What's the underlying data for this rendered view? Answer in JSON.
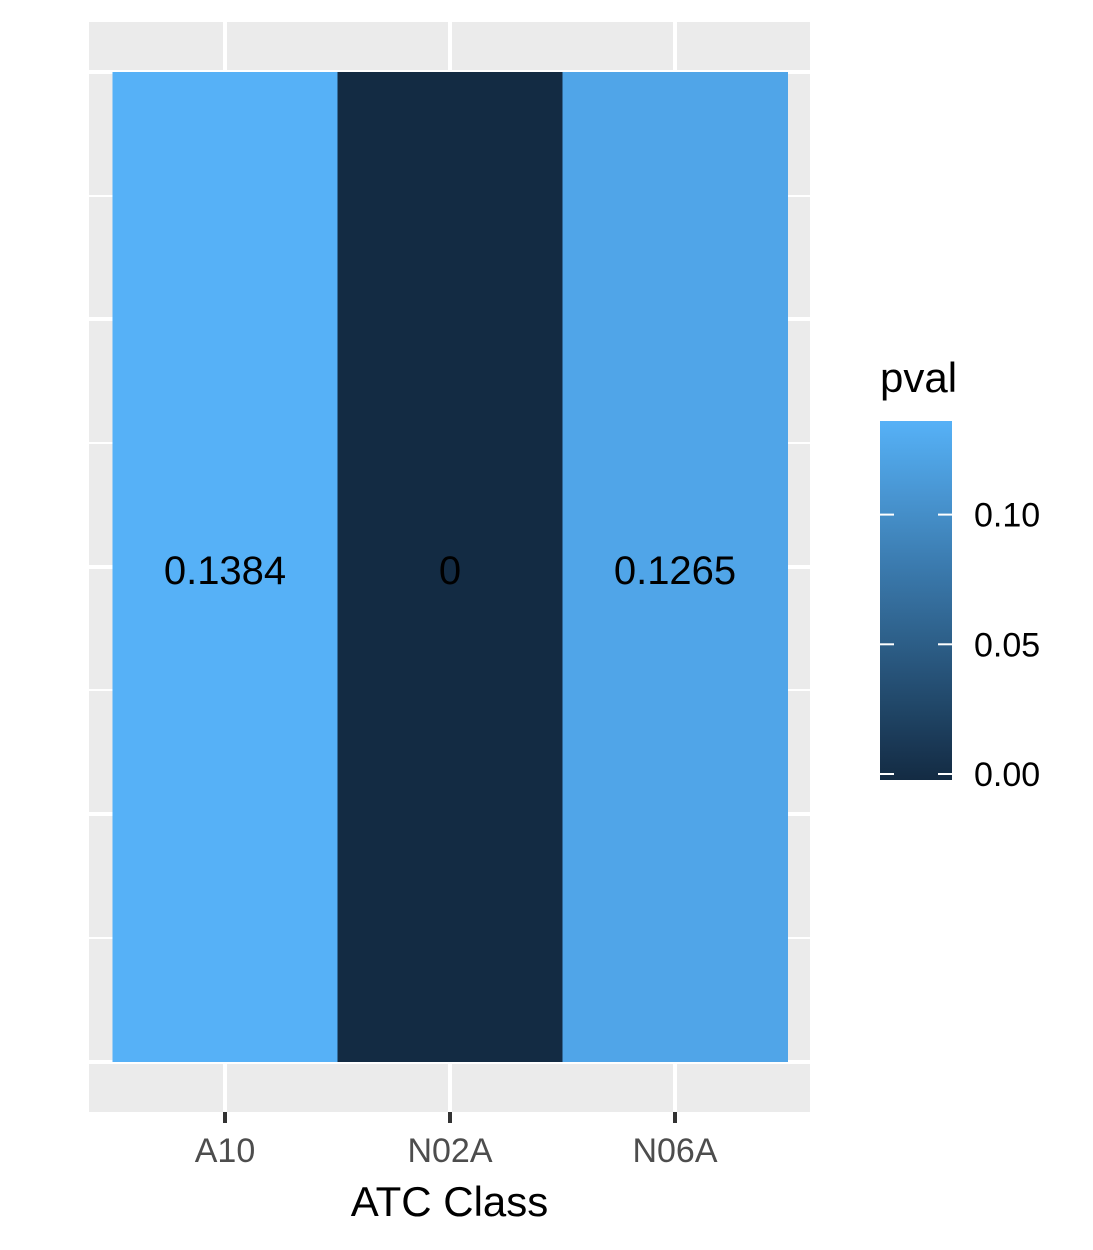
{
  "chart_data": {
    "type": "heatmap",
    "xlabel": "ATC Class",
    "ylabel": "",
    "categories": [
      "A10",
      "N02A",
      "N06A"
    ],
    "values": [
      0.1384,
      0,
      0.1265
    ],
    "cell_labels": [
      "0.1384",
      "0",
      "0.1265"
    ],
    "grid": true,
    "legend": {
      "title": "pval",
      "placement": "right",
      "type": "colorbar",
      "range": [
        0,
        0.1384
      ],
      "ticks": [
        0.0,
        0.05,
        0.1
      ],
      "tick_labels": [
        "0.00",
        "0.05",
        "0.10"
      ],
      "low_color": "#132B43",
      "high_color": "#56B1F7"
    },
    "colors": {
      "panel_background": "#EBEBEB",
      "grid": "#FFFFFF",
      "tick_text": "#4D4D4D",
      "tick_mark": "#333333"
    }
  }
}
